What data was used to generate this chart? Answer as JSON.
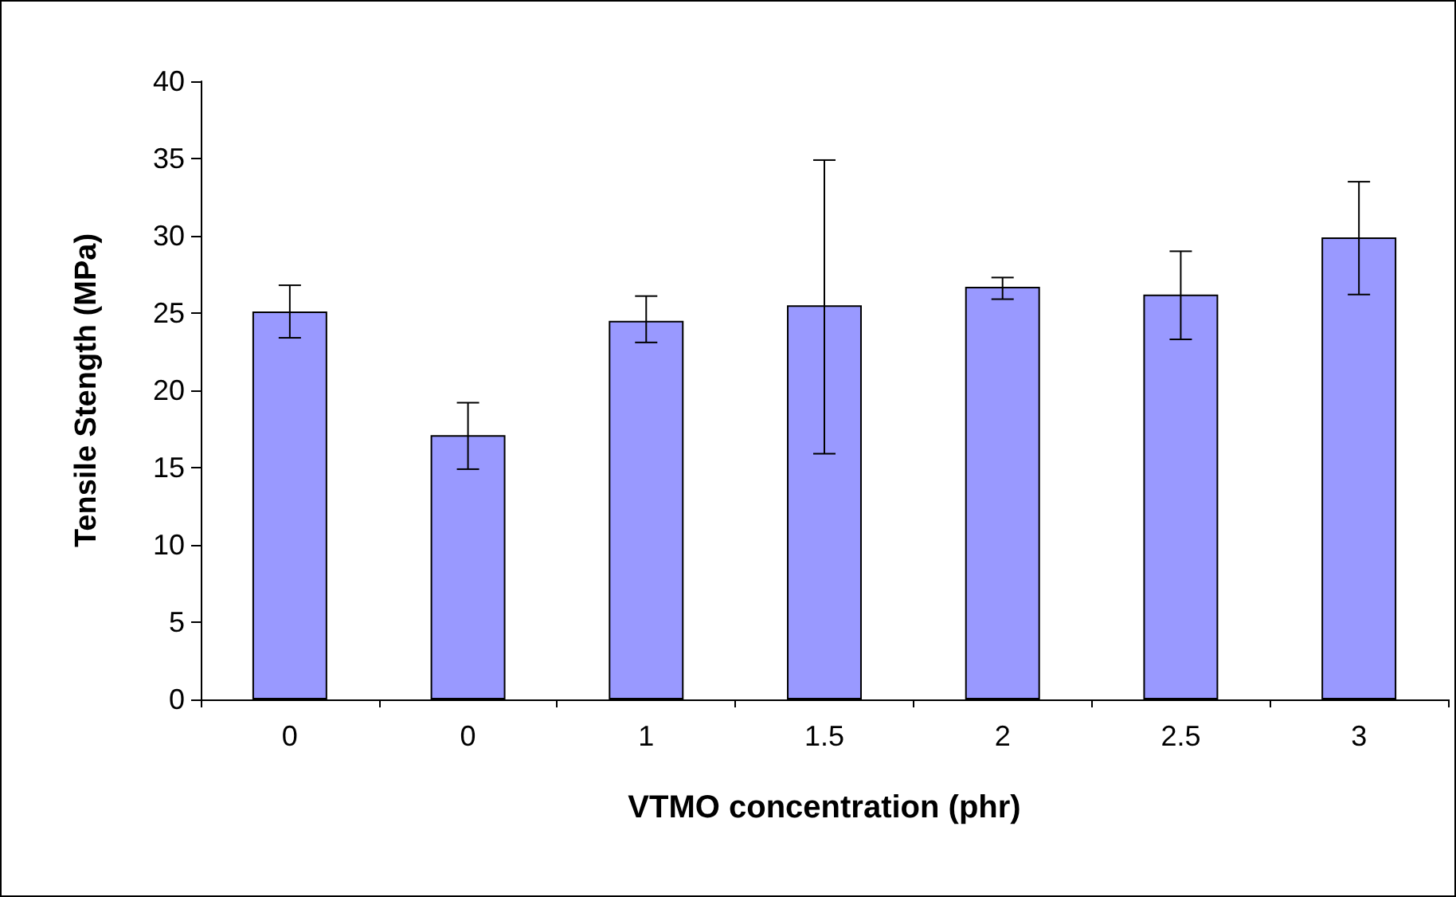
{
  "chart_data": {
    "type": "bar",
    "xlabel": "VTMO concentration (phr)",
    "ylabel": "Tensile Stength (MPa)",
    "categories": [
      "0",
      "0",
      "1",
      "1.5",
      "2",
      "2.5",
      "3"
    ],
    "values": [
      25.1,
      17.1,
      24.5,
      25.5,
      26.7,
      26.2,
      29.9
    ],
    "errors": [
      [
        23.4,
        26.8
      ],
      [
        14.9,
        19.2
      ],
      [
        23.1,
        26.1
      ],
      [
        15.9,
        34.9
      ],
      [
        25.9,
        27.3
      ],
      [
        23.3,
        29.0
      ],
      [
        26.2,
        33.5
      ]
    ],
    "color": "#9999ff",
    "ylim": [
      0,
      40
    ],
    "yticks": [
      0,
      5,
      10,
      15,
      20,
      25,
      30,
      35,
      40
    ],
    "grid": false
  }
}
